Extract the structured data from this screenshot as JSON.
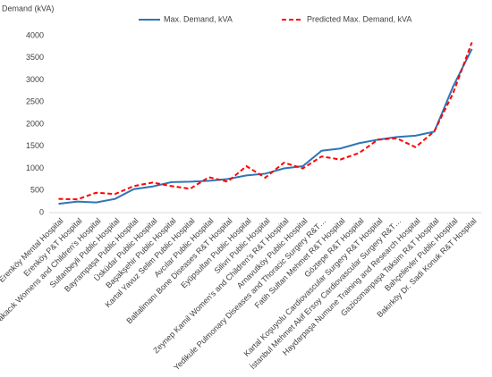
{
  "chart_data": {
    "type": "line",
    "y_axis_label": "Demand (kVA)",
    "categories": [
      "Erenköy Mental Hospital",
      "Erenköy P&T Hospital",
      "Yakacık Womens and Children's Hospital",
      "Sultanbeyli Public Hospital",
      "Bayrampaşa Public Hospital",
      "Üsküdar Public Hospital",
      "Başakşehir Public Hospital",
      "Kartal Yavuz Selim Public Hospital",
      "Avcılar Public Hospital",
      "Baltalimanı Bone Diseases R&T Hospital",
      "Eyüpsultan Public Hospital",
      "Silivri Public Hospital",
      "Zeynep Kamil Women's and Children's R&T Hospital",
      "Arnavutköy Public Hospital",
      "Yedikule Pulmonary Diseases and Thoracic Surgery R&T…",
      "Fatih Sultan Mehmet R&T Hospital",
      "Göztepe R&T Hospital",
      "Kartal Koşuyolu Cardiovascular Surgery R&T Hospital",
      "İstanbul Mehmet Akif Ersoy Cardiovascular Surgery R&T…",
      "Haydarpaşa Numune Training and Research Hospital",
      "Gaziosmanpaşa Taksim R&T Hospital",
      "Bahçelievler Public Hospital",
      "Bakırköy Dr. Sadi Konuk R&T Hospital"
    ],
    "series": [
      {
        "name": "Max. Demand, kVA",
        "color": "#2e75b6",
        "dash": false,
        "values": [
          200,
          250,
          230,
          310,
          530,
          590,
          690,
          700,
          720,
          760,
          840,
          880,
          1000,
          1050,
          1400,
          1450,
          1570,
          1650,
          1710,
          1740,
          1830,
          2850,
          3700
        ]
      },
      {
        "name": "Predicted Max. Demand, kVA",
        "color": "#ff0000",
        "dash": true,
        "values": [
          310,
          300,
          450,
          420,
          600,
          680,
          600,
          540,
          800,
          700,
          1050,
          790,
          1130,
          1000,
          1270,
          1200,
          1350,
          1650,
          1680,
          1480,
          1840,
          2700,
          3850
        ]
      }
    ],
    "ylim": [
      0,
      4000
    ],
    "yticks": [
      0,
      500,
      1000,
      1500,
      2000,
      2500,
      3000,
      3500,
      4000
    ],
    "grid": false
  }
}
